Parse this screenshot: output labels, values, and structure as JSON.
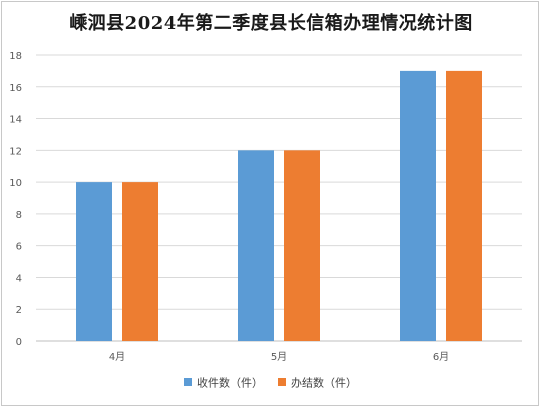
{
  "chart_data": {
    "type": "bar",
    "title": "嵊泗县2024年第二季度县长信箱办理情况统计图",
    "categories": [
      "4月",
      "5月",
      "6月"
    ],
    "series": [
      {
        "name": "收件数（件）",
        "values": [
          10,
          12,
          17
        ],
        "color": "#5b9bd5"
      },
      {
        "name": "办结数（件）",
        "values": [
          10,
          12,
          17
        ],
        "color": "#ed7d31"
      }
    ],
    "ylim": [
      0,
      18
    ],
    "yticks": [
      0,
      2,
      4,
      6,
      8,
      10,
      12,
      14,
      16,
      18
    ],
    "grid": true,
    "legend_position": "bottom"
  }
}
